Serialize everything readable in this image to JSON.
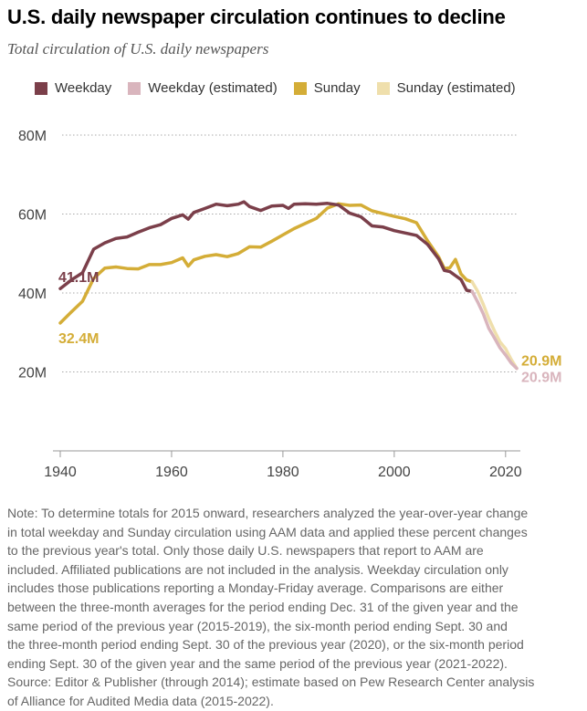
{
  "title": "U.S. daily newspaper circulation continues to decline",
  "subtitle": "Total circulation of U.S. daily newspapers",
  "legend": [
    {
      "label": "Weekday",
      "color": "#7b3f4a"
    },
    {
      "label": "Weekday (estimated)",
      "color": "#d9b5bd"
    },
    {
      "label": "Sunday",
      "color": "#d4ad37"
    },
    {
      "label": "Sunday (estimated)",
      "color": "#efdfac"
    }
  ],
  "chart_data": {
    "type": "line",
    "x_ticks": [
      1940,
      1960,
      1980,
      2000,
      2020
    ],
    "y_ticks": [
      {
        "value": 20,
        "label": "20M"
      },
      {
        "value": 40,
        "label": "40M"
      },
      {
        "value": 60,
        "label": "60M"
      },
      {
        "value": 80,
        "label": "80M"
      }
    ],
    "xlim": [
      1940,
      2022
    ],
    "ylim": [
      0,
      80
    ],
    "series": [
      {
        "name": "Weekday",
        "color": "#7b3f4a",
        "x": [
          1940,
          1942,
          1944,
          1946,
          1948,
          1950,
          1952,
          1954,
          1956,
          1958,
          1960,
          1962,
          1963,
          1964,
          1966,
          1968,
          1970,
          1972,
          1973,
          1974,
          1976,
          1978,
          1980,
          1981,
          1982,
          1984,
          1986,
          1988,
          1990,
          1992,
          1994,
          1996,
          1998,
          2000,
          2002,
          2004,
          2006,
          2008,
          2009,
          2010,
          2011,
          2012,
          2013,
          2014
        ],
        "y": [
          41.1,
          43.3,
          45.1,
          51.1,
          52.7,
          53.8,
          54.2,
          55.4,
          56.5,
          57.3,
          58.9,
          59.8,
          58.7,
          60.4,
          61.4,
          62.5,
          62.1,
          62.5,
          63.1,
          61.9,
          60.9,
          62,
          62.2,
          61.4,
          62.5,
          62.6,
          62.5,
          62.7,
          62.3,
          60.2,
          59.3,
          57,
          56.7,
          55.8,
          55.2,
          54.6,
          52.3,
          48.6,
          45.7,
          45.4,
          44.4,
          43.4,
          40.7,
          40.4
        ]
      },
      {
        "name": "Weekday (estimated)",
        "color": "#d9b5bd",
        "x": [
          2014,
          2015,
          2016,
          2017,
          2018,
          2019,
          2020,
          2021,
          2022
        ],
        "y": [
          40.4,
          37.7,
          34.7,
          31,
          28.6,
          26.1,
          24.3,
          22.3,
          20.9
        ]
      },
      {
        "name": "Sunday",
        "color": "#d4ad37",
        "x": [
          1940,
          1942,
          1944,
          1946,
          1948,
          1950,
          1952,
          1954,
          1956,
          1958,
          1960,
          1962,
          1963,
          1964,
          1966,
          1968,
          1970,
          1972,
          1974,
          1976,
          1978,
          1980,
          1982,
          1984,
          1986,
          1988,
          1990,
          1992,
          1994,
          1996,
          1998,
          2000,
          2002,
          2004,
          2006,
          2008,
          2009,
          2010,
          2011,
          2012,
          2013,
          2014
        ],
        "y": [
          32.4,
          35.2,
          37.9,
          43.7,
          46.3,
          46.6,
          46.2,
          46.1,
          47.2,
          47.2,
          47.7,
          48.9,
          46.8,
          48.4,
          49.3,
          49.7,
          49.2,
          50,
          51.7,
          51.6,
          53.1,
          54.7,
          56.3,
          57.6,
          58.9,
          61.5,
          62.6,
          62.2,
          62.3,
          60.8,
          60.1,
          59.4,
          58.8,
          57.8,
          53.2,
          49.1,
          46.2,
          46.4,
          48.5,
          44.8,
          43.3,
          42.8
        ]
      },
      {
        "name": "Sunday (estimated)",
        "color": "#efdfac",
        "x": [
          2014,
          2015,
          2016,
          2017,
          2018,
          2019,
          2020,
          2021,
          2022
        ],
        "y": [
          42.8,
          40.4,
          37.1,
          33.5,
          30.4,
          27.6,
          25.9,
          23.2,
          20.9
        ]
      }
    ],
    "annotations": [
      {
        "text": "41.1M",
        "color": "#7b3f4a",
        "x": 1940,
        "y": 41.1
      },
      {
        "text": "32.4M",
        "color": "#d4ad37",
        "x": 1940,
        "y": 32.4
      },
      {
        "text": "20.9M",
        "color": "#d4ad37",
        "x": 2022,
        "y": 20.9
      },
      {
        "text": "20.9M",
        "color": "#d9b5bd",
        "x": 2022,
        "y": 20.9
      }
    ]
  },
  "note": {
    "line1": "Note: To determine totals for 2015 onward, researchers analyzed the year-over-year change",
    "line2": "in total weekday and Sunday circulation using AAM data and applied these percent changes",
    "line3": "to the previous year's total. Only those daily U.S. newspapers that report to AAM are",
    "line4": "included. Affiliated publications are not included in the analysis. Weekday circulation only",
    "line5": "includes those publications reporting a Monday-Friday average. Comparisons are either",
    "line6": "between the three-month averages for the period ending Dec. 31 of the given year and the",
    "line7": "same period of the previous year (2015-2019), the six-month period ending Sept. 30 and",
    "line8": "the three-month period ending Sept. 30 of the previous year (2020), or the six-month period",
    "line9": "ending Sept. 30 of the given year and the same period of the previous year (2021-2022).",
    "line10": "Source: Editor & Publisher (through 2014); estimate based on Pew Research Center analysis",
    "line11": "of Alliance for Audited Media data (2015-2022)."
  }
}
